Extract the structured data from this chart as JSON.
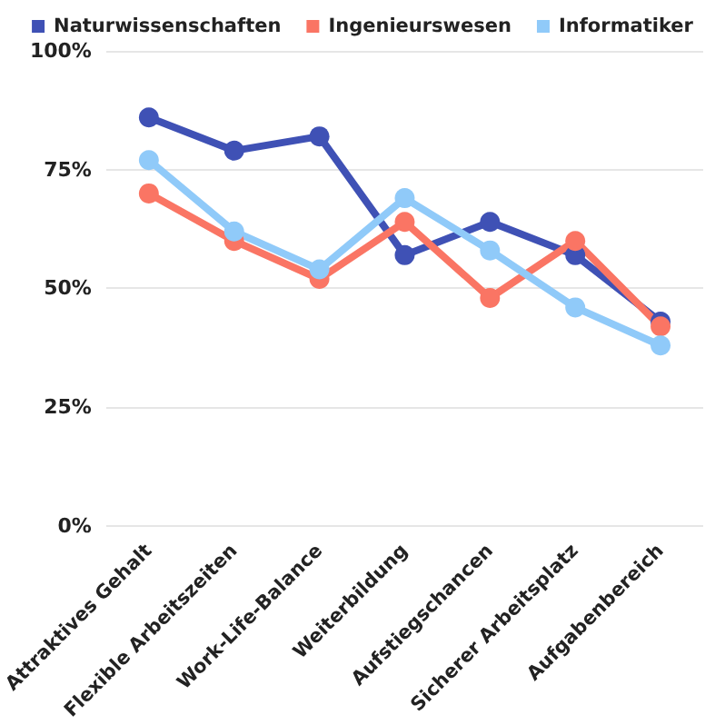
{
  "chart_data": {
    "type": "line",
    "categories": [
      "Attraktives Gehalt",
      "Flexible Arbeitszeiten",
      "Work-Life-Balance",
      "Weiterbildung",
      "Aufstiegschancen",
      "Sicherer Arbeitsplatz",
      "Aufgabenbereich"
    ],
    "series": [
      {
        "name": "Naturwissenschaften",
        "color": "#3f51b5",
        "values": [
          86,
          79,
          82,
          57,
          64,
          57,
          43
        ]
      },
      {
        "name": "Ingenieurswesen",
        "color": "#fa7564",
        "values": [
          70,
          60,
          52,
          64,
          48,
          60,
          42
        ]
      },
      {
        "name": "Informatiker",
        "color": "#90caf9",
        "values": [
          77,
          62,
          54,
          69,
          58,
          46,
          38
        ]
      }
    ],
    "ylim": [
      0,
      100
    ],
    "yticks": [
      {
        "value": 0,
        "label": "0%"
      },
      {
        "value": 25,
        "label": "25%"
      },
      {
        "value": 50,
        "label": "50%"
      },
      {
        "value": 75,
        "label": "75%"
      },
      {
        "value": 100,
        "label": "100%"
      }
    ],
    "grid": "y",
    "legend": "top",
    "marker": "circle",
    "line_style": "solid"
  }
}
